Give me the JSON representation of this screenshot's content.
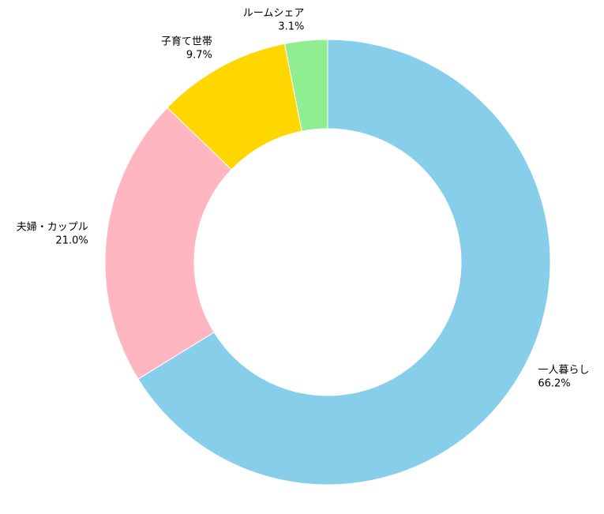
{
  "chart_data": {
    "type": "pie",
    "variant": "donut",
    "title": "",
    "slices": [
      {
        "name": "一人暮らし",
        "value": 66.2,
        "label": "66.2%",
        "color": "#87CEEB"
      },
      {
        "name": "夫婦・カップル",
        "value": 21.0,
        "label": "21.0%",
        "color": "#FFB6C1"
      },
      {
        "name": "子育て世帯",
        "value": 9.7,
        "label": "9.7%",
        "color": "#FFD700"
      },
      {
        "name": "ルームシェア",
        "value": 3.1,
        "label": "3.1%",
        "color": "#90EE90"
      }
    ],
    "start": "top",
    "direction": "clockwise",
    "legend": "none"
  }
}
